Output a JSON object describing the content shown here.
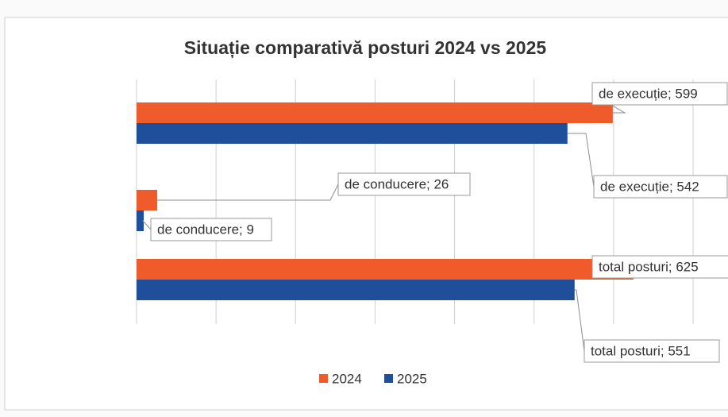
{
  "chart_data": {
    "type": "bar",
    "orientation": "horizontal",
    "title": "Situație comparativă posturi 2024 vs 2025",
    "categories": [
      "de execuție",
      "de conducere",
      "total posturi"
    ],
    "series": [
      {
        "name": "2024",
        "color": "#ef5b2b",
        "values": [
          599,
          26,
          625
        ],
        "value_labels": [
          "de execuție; 599",
          "de conducere; 26",
          "total posturi; 625"
        ]
      },
      {
        "name": "2025",
        "color": "#1f4e9a",
        "values": [
          542,
          9,
          551
        ],
        "value_labels": [
          "de execuție; 542",
          "de conducere; 9",
          "total posturi; 551"
        ]
      }
    ],
    "xlim": [
      0,
      700
    ],
    "xticks": [
      0,
      100,
      200,
      300,
      400,
      500,
      600,
      700
    ],
    "grid": true,
    "legend": "bottom"
  }
}
